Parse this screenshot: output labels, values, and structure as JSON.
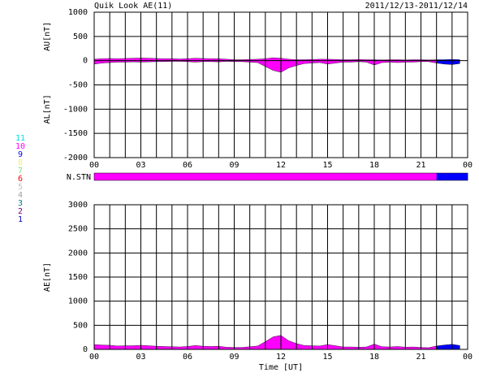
{
  "chart_data": [
    {
      "type": "area",
      "title": "Quik Look AE(11)",
      "subtitle": "2011/12/13-2011/12/14",
      "x": [
        0,
        0.5,
        1,
        1.5,
        2,
        2.5,
        3,
        3.5,
        4,
        4.5,
        5,
        5.5,
        6,
        6.5,
        7,
        7.5,
        8,
        8.5,
        9,
        9.5,
        10,
        10.5,
        11,
        11.5,
        12,
        12.5,
        13,
        13.5,
        14,
        14.5,
        15,
        15.5,
        16,
        16.5,
        17,
        17.5,
        18,
        18.5,
        19,
        19.5,
        20,
        20.5,
        21,
        21.5,
        22,
        22.5,
        23,
        23.5
      ],
      "series": [
        {
          "name": "AU[nT]",
          "values": [
            30,
            40,
            45,
            40,
            45,
            50,
            55,
            50,
            45,
            40,
            40,
            35,
            40,
            50,
            45,
            40,
            40,
            30,
            20,
            20,
            25,
            30,
            40,
            60,
            50,
            30,
            20,
            20,
            25,
            30,
            30,
            25,
            20,
            20,
            25,
            20,
            20,
            15,
            20,
            20,
            15,
            20,
            20,
            15,
            20,
            20,
            25,
            20
          ]
        },
        {
          "name": "AL[nT]",
          "values": [
            -70,
            -50,
            -40,
            -30,
            -30,
            -25,
            -30,
            -25,
            -20,
            -20,
            -15,
            -15,
            -20,
            -30,
            -20,
            -20,
            -25,
            -15,
            -20,
            -20,
            -30,
            -40,
            -120,
            -200,
            -240,
            -150,
            -100,
            -60,
            -50,
            -40,
            -70,
            -50,
            -30,
            -30,
            -20,
            -30,
            -90,
            -40,
            -30,
            -40,
            -30,
            -30,
            -20,
            -20,
            -50,
            -70,
            -80,
            -60
          ]
        }
      ],
      "xlim": [
        0,
        24
      ],
      "xticks": [
        {
          "value": 0,
          "label": "00"
        },
        {
          "value": 1,
          "label": null
        },
        {
          "value": 2,
          "label": null
        },
        {
          "value": 3,
          "label": "03"
        },
        {
          "value": 4,
          "label": null
        },
        {
          "value": 5,
          "label": null
        },
        {
          "value": 6,
          "label": "06"
        },
        {
          "value": 7,
          "label": null
        },
        {
          "value": 8,
          "label": null
        },
        {
          "value": 9,
          "label": "09"
        },
        {
          "value": 10,
          "label": null
        },
        {
          "value": 11,
          "label": null
        },
        {
          "value": 12,
          "label": "12"
        },
        {
          "value": 13,
          "label": null
        },
        {
          "value": 14,
          "label": null
        },
        {
          "value": 15,
          "label": "15"
        },
        {
          "value": 16,
          "label": null
        },
        {
          "value": 17,
          "label": null
        },
        {
          "value": 18,
          "label": "18"
        },
        {
          "value": 19,
          "label": null
        },
        {
          "value": 20,
          "label": null
        },
        {
          "value": 21,
          "label": "21"
        },
        {
          "value": 22,
          "label": null
        },
        {
          "value": 23,
          "label": null
        },
        {
          "value": 24,
          "label": "00"
        }
      ],
      "ylim": [
        -2000,
        1000
      ],
      "yticks": [
        -2000,
        -1500,
        -1000,
        -500,
        0,
        500,
        1000
      ],
      "grid": true
    },
    {
      "type": "station-bar",
      "label": "N.STN",
      "values": [
        10,
        10,
        10,
        10,
        10,
        10,
        10,
        10,
        10,
        10,
        10,
        10,
        10,
        10,
        10,
        10,
        10,
        10,
        10,
        10,
        10,
        10,
        10,
        10,
        10,
        10,
        10,
        10,
        10,
        10,
        10,
        10,
        10,
        10,
        10,
        10,
        10,
        10,
        10,
        10,
        10,
        10,
        10,
        10,
        9,
        9,
        9,
        9
      ],
      "legend": [
        {
          "label": "11",
          "color": "#00e0e0"
        },
        {
          "label": "10",
          "color": "#ff00ff"
        },
        {
          "label": "9",
          "color": "#0000ff"
        },
        {
          "label": "8",
          "color": "#f0f080"
        },
        {
          "label": "7",
          "color": "#80e080"
        },
        {
          "label": "6",
          "color": "#ff0000"
        },
        {
          "label": "5",
          "color": "#c0c0c0"
        },
        {
          "label": "4",
          "color": "#a0a0a0"
        },
        {
          "label": "3",
          "color": "#008080"
        },
        {
          "label": "2",
          "color": "#800080"
        },
        {
          "label": "1",
          "color": "#0000c0"
        }
      ]
    },
    {
      "type": "area",
      "xlabel": "Time [UT]",
      "series": [
        {
          "name": "AE[nT]",
          "values": [
            100,
            90,
            85,
            70,
            75,
            75,
            85,
            75,
            65,
            60,
            55,
            50,
            60,
            80,
            65,
            60,
            65,
            45,
            40,
            40,
            55,
            70,
            160,
            260,
            290,
            180,
            120,
            80,
            75,
            70,
            100,
            75,
            50,
            50,
            45,
            50,
            110,
            55,
            50,
            60,
            45,
            50,
            40,
            35,
            70,
            90,
            105,
            80
          ]
        }
      ],
      "ylim": [
        0,
        3000
      ],
      "yticks": [
        0,
        500,
        1000,
        1500,
        2000,
        2500,
        3000
      ],
      "grid": true
    }
  ]
}
